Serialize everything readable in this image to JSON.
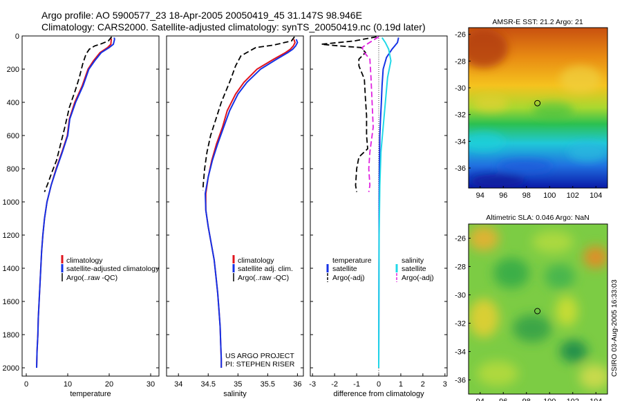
{
  "title": {
    "line1": "Argo profile: AO 5900577_23 18-Apr-2005 20050419_45 31.147S 98.946E",
    "line2": "Climatology: CARS2000. Satellite-adjusted climatology: synTS_20050419.nc (0.19d later)"
  },
  "colors": {
    "climatology": "#e0141e",
    "satellite": "#1432e6",
    "argo": "#000000",
    "sal_satellite": "#20d8e8",
    "sal_argo": "#e020e0"
  },
  "chart_data": [
    {
      "type": "line",
      "xlabel": "temperature",
      "xlim": [
        -1,
        32
      ],
      "ylim": [
        2050,
        0
      ],
      "xticks": [
        "0",
        "10",
        "20",
        "30"
      ],
      "yticks": [
        "0",
        "200",
        "400",
        "600",
        "800",
        "1000",
        "1200",
        "1400",
        "1600",
        "1800",
        "2000"
      ],
      "series": [
        {
          "name": "climatology",
          "color": "#e0141e",
          "dash": "",
          "points": [
            [
              20.3,
              10
            ],
            [
              20.5,
              20
            ],
            [
              20.4,
              50
            ],
            [
              19.6,
              70
            ],
            [
              17.8,
              100
            ],
            [
              16.2,
              150
            ],
            [
              14.9,
              200
            ],
            [
              13.5,
              300
            ],
            [
              11.7,
              400
            ],
            [
              10.4,
              500
            ],
            [
              9.9,
              600
            ],
            [
              8.6,
              700
            ],
            [
              7.2,
              800
            ],
            [
              6.0,
              900
            ],
            [
              5.0,
              1000
            ],
            [
              4.4,
              1100
            ],
            [
              4.0,
              1200
            ],
            [
              3.7,
              1300
            ],
            [
              3.5,
              1400
            ],
            [
              3.3,
              1500
            ],
            [
              3.1,
              1600
            ],
            [
              2.9,
              1700
            ],
            [
              2.8,
              1800
            ],
            [
              2.6,
              1900
            ],
            [
              2.5,
              2000
            ]
          ]
        },
        {
          "name": "satellite-adjusted climatology",
          "color": "#1432e6",
          "dash": "",
          "points": [
            [
              21.2,
              10
            ],
            [
              21.3,
              20
            ],
            [
              21.0,
              50
            ],
            [
              20.0,
              70
            ],
            [
              18.1,
              100
            ],
            [
              16.5,
              150
            ],
            [
              15.1,
              200
            ],
            [
              13.7,
              300
            ],
            [
              11.9,
              400
            ],
            [
              10.5,
              500
            ],
            [
              10.0,
              600
            ],
            [
              8.7,
              700
            ],
            [
              7.3,
              800
            ],
            [
              6.0,
              900
            ],
            [
              5.0,
              1000
            ],
            [
              4.4,
              1100
            ],
            [
              4.0,
              1200
            ],
            [
              3.7,
              1300
            ],
            [
              3.5,
              1400
            ],
            [
              3.3,
              1500
            ],
            [
              3.1,
              1600
            ],
            [
              2.9,
              1700
            ],
            [
              2.8,
              1800
            ],
            [
              2.6,
              1900
            ],
            [
              2.5,
              2000
            ]
          ]
        },
        {
          "name": "Argo(..raw -QC)",
          "color": "#000000",
          "dash": "8,4",
          "points": [
            [
              20.6,
              5
            ],
            [
              19.8,
              30
            ],
            [
              17.8,
              50
            ],
            [
              16.5,
              60
            ],
            [
              15.2,
              80
            ],
            [
              14.4,
              110
            ],
            [
              13.6,
              170
            ],
            [
              12.8,
              250
            ],
            [
              11.8,
              330
            ],
            [
              10.4,
              430
            ],
            [
              9.3,
              550
            ],
            [
              8.3,
              650
            ],
            [
              7.3,
              750
            ],
            [
              6.2,
              820
            ],
            [
              5.2,
              890
            ],
            [
              4.4,
              940
            ]
          ]
        }
      ]
    },
    {
      "type": "line",
      "xlabel": "salinity",
      "xlim": [
        33.8,
        36.1
      ],
      "ylim": [
        2050,
        0
      ],
      "xticks": [
        "34",
        "34.5",
        "35",
        "35.5",
        "36"
      ],
      "series": [
        {
          "name": "climatology",
          "color": "#e0141e",
          "dash": "",
          "points": [
            [
              35.94,
              20
            ],
            [
              35.96,
              40
            ],
            [
              35.93,
              60
            ],
            [
              35.88,
              80
            ],
            [
              35.8,
              100
            ],
            [
              35.6,
              140
            ],
            [
              35.32,
              200
            ],
            [
              35.1,
              280
            ],
            [
              34.96,
              350
            ],
            [
              34.82,
              450
            ],
            [
              34.74,
              550
            ],
            [
              34.64,
              650
            ],
            [
              34.56,
              750
            ],
            [
              34.5,
              850
            ],
            [
              34.46,
              950
            ],
            [
              34.46,
              1050
            ],
            [
              34.5,
              1150
            ],
            [
              34.55,
              1250
            ],
            [
              34.6,
              1350
            ],
            [
              34.63,
              1450
            ],
            [
              34.66,
              1550
            ],
            [
              34.68,
              1650
            ],
            [
              34.7,
              1750
            ],
            [
              34.71,
              1850
            ],
            [
              34.72,
              1950
            ],
            [
              34.72,
              2000
            ]
          ]
        },
        {
          "name": "satellite adj. clim.",
          "color": "#1432e6",
          "dash": "",
          "points": [
            [
              35.98,
              20
            ],
            [
              36.0,
              40
            ],
            [
              35.97,
              60
            ],
            [
              35.92,
              80
            ],
            [
              35.84,
              100
            ],
            [
              35.65,
              140
            ],
            [
              35.38,
              200
            ],
            [
              35.15,
              280
            ],
            [
              35.0,
              350
            ],
            [
              34.86,
              450
            ],
            [
              34.76,
              550
            ],
            [
              34.66,
              650
            ],
            [
              34.57,
              750
            ],
            [
              34.5,
              850
            ],
            [
              34.45,
              950
            ],
            [
              34.46,
              1050
            ],
            [
              34.5,
              1150
            ],
            [
              34.55,
              1250
            ],
            [
              34.6,
              1350
            ],
            [
              34.63,
              1450
            ],
            [
              34.66,
              1550
            ],
            [
              34.68,
              1650
            ],
            [
              34.7,
              1750
            ],
            [
              34.71,
              1850
            ],
            [
              34.72,
              1950
            ],
            [
              34.72,
              2000
            ]
          ]
        },
        {
          "name": "Argo(..raw -QC)",
          "color": "#000000",
          "dash": "8,4",
          "points": [
            [
              35.95,
              5
            ],
            [
              35.9,
              30
            ],
            [
              35.6,
              55
            ],
            [
              35.3,
              70
            ],
            [
              35.2,
              90
            ],
            [
              35.05,
              120
            ],
            [
              34.96,
              180
            ],
            [
              34.88,
              260
            ],
            [
              34.8,
              330
            ],
            [
              34.72,
              400
            ],
            [
              34.63,
              500
            ],
            [
              34.54,
              600
            ],
            [
              34.48,
              700
            ],
            [
              34.44,
              800
            ],
            [
              34.42,
              880
            ],
            [
              34.41,
              930
            ]
          ]
        }
      ]
    },
    {
      "type": "line",
      "xlabel": "difference from climatology",
      "xlim": [
        -3.1,
        3.1
      ],
      "ylim": [
        2050,
        0
      ],
      "xticks": [
        "-3",
        "-2",
        "-1",
        "0",
        "1",
        "2",
        "3"
      ],
      "legend_left": [
        "temperature",
        "satellite",
        "Argo(-adj)"
      ],
      "legend_right": [
        "salinity",
        "satellite",
        "Argo(-adj)"
      ],
      "series": [
        {
          "name": "satellite",
          "color": "#1432e6",
          "dash": "",
          "points": [
            [
              0.9,
              10
            ],
            [
              0.85,
              40
            ],
            [
              0.6,
              80
            ],
            [
              0.35,
              130
            ],
            [
              0.2,
              200
            ],
            [
              0.15,
              300
            ],
            [
              0.12,
              400
            ],
            [
              0.08,
              500
            ],
            [
              0.05,
              600
            ],
            [
              0.03,
              800
            ],
            [
              0.02,
              1000
            ],
            [
              0.01,
              1400
            ],
            [
              0.0,
              2000
            ]
          ]
        },
        {
          "name": "satellite",
          "color": "#20d8e8",
          "dash": "",
          "points": [
            [
              0.15,
              10
            ],
            [
              0.3,
              40
            ],
            [
              0.45,
              80
            ],
            [
              0.55,
              150
            ],
            [
              0.4,
              250
            ],
            [
              0.3,
              400
            ],
            [
              0.2,
              550
            ],
            [
              0.1,
              700
            ],
            [
              0.05,
              900
            ],
            [
              0.02,
              1200
            ],
            [
              0.0,
              2000
            ]
          ]
        },
        {
          "name": "Argo(-adj)",
          "color": "#000000",
          "dash": "8,4",
          "points": [
            [
              -0.1,
              5
            ],
            [
              -1.1,
              30
            ],
            [
              -2.6,
              50
            ],
            [
              -1.8,
              60
            ],
            [
              -0.8,
              70
            ],
            [
              -0.6,
              100
            ],
            [
              -0.9,
              140
            ],
            [
              -0.9,
              180
            ],
            [
              -0.65,
              260
            ],
            [
              -0.6,
              380
            ],
            [
              -0.55,
              480
            ],
            [
              -0.55,
              600
            ],
            [
              -0.5,
              680
            ],
            [
              -0.9,
              730
            ],
            [
              -1.0,
              800
            ],
            [
              -1.05,
              900
            ],
            [
              -1.0,
              940
            ]
          ]
        },
        {
          "name": "Argo(-adj)",
          "color": "#e020e0",
          "dash": "8,4",
          "points": [
            [
              0.0,
              5
            ],
            [
              -0.3,
              30
            ],
            [
              -0.6,
              55
            ],
            [
              -0.75,
              70
            ],
            [
              -0.65,
              100
            ],
            [
              -0.4,
              140
            ],
            [
              -0.35,
              250
            ],
            [
              -0.3,
              400
            ],
            [
              -0.25,
              550
            ],
            [
              -0.4,
              700
            ],
            [
              -0.45,
              800
            ],
            [
              -0.4,
              900
            ],
            [
              -0.45,
              940
            ]
          ]
        }
      ]
    },
    {
      "type": "heatmap",
      "title": "AMSR-E SST: 21.2 Argo: 21",
      "xlim": [
        93,
        105
      ],
      "ylim": [
        -37.5,
        -25.5
      ],
      "xticks": [
        "94",
        "96",
        "98",
        "100",
        "102",
        "104"
      ],
      "yticks": [
        "-26",
        "-28",
        "-30",
        "-32",
        "-34",
        "-36"
      ],
      "marker": [
        98.946,
        -31.147
      ]
    },
    {
      "type": "heatmap",
      "title": "Altimetric SLA: 0.046 Argo: NaN",
      "xlim": [
        93,
        105
      ],
      "ylim": [
        -37,
        -25
      ],
      "xticks": [
        "94",
        "96",
        "98",
        "100",
        "102",
        "104"
      ],
      "yticks": [
        "-26",
        "-28",
        "-30",
        "-32",
        "-34",
        "-36"
      ],
      "marker": [
        98.946,
        -31.147
      ]
    }
  ],
  "legends": {
    "temperature": [
      "climatology",
      "satellite-adjusted climatology",
      "Argo(..raw -QC)"
    ],
    "salinity": [
      "climatology",
      "satellite adj. clim.",
      "Argo(..raw -QC)"
    ]
  },
  "credits": {
    "project": "US ARGO PROJECT",
    "pi": "PI: STEPHEN RISER"
  },
  "timestamp": "CSIRO 03-Aug-2005 16:33:03"
}
